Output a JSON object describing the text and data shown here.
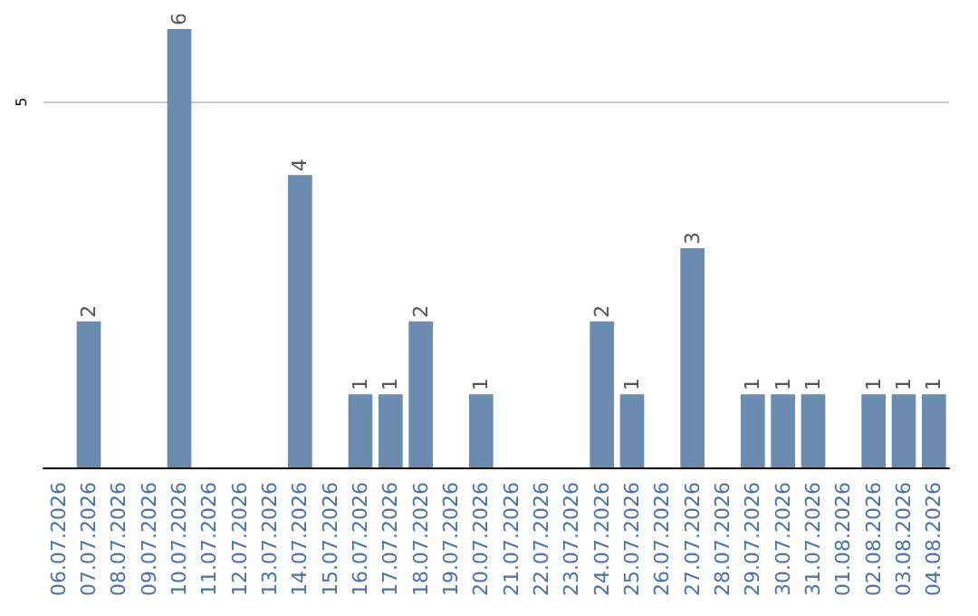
{
  "chart_data": {
    "type": "bar",
    "categories": [
      "06.07.2026",
      "07.07.2026",
      "08.07.2026",
      "09.07.2026",
      "10.07.2026",
      "11.07.2026",
      "12.07.2026",
      "13.07.2026",
      "14.07.2026",
      "15.07.2026",
      "16.07.2026",
      "17.07.2026",
      "18.07.2026",
      "19.07.2026",
      "20.07.2026",
      "21.07.2026",
      "22.07.2026",
      "23.07.2026",
      "24.07.2026",
      "25.07.2026",
      "26.07.2026",
      "27.07.2026",
      "28.07.2026",
      "29.07.2026",
      "30.07.2026",
      "31.07.2026",
      "01.08.2026",
      "02.08.2026",
      "03.08.2026",
      "04.08.2026"
    ],
    "values": [
      0,
      2,
      0,
      0,
      6,
      0,
      0,
      0,
      4,
      0,
      1,
      1,
      2,
      0,
      1,
      0,
      0,
      0,
      2,
      1,
      0,
      3,
      0,
      1,
      1,
      1,
      0,
      1,
      1,
      1
    ],
    "value_labels": [
      null,
      "2",
      null,
      null,
      "6",
      null,
      null,
      null,
      "4",
      null,
      "1",
      "1",
      "2",
      null,
      "1",
      null,
      null,
      null,
      "2",
      "1",
      null,
      "3",
      null,
      "1",
      "1",
      "1",
      null,
      "1",
      "1",
      "1"
    ],
    "color": "#6b8cae",
    "ylim": [
      0,
      6
    ],
    "yticks": [
      5
    ],
    "grid": "y"
  }
}
